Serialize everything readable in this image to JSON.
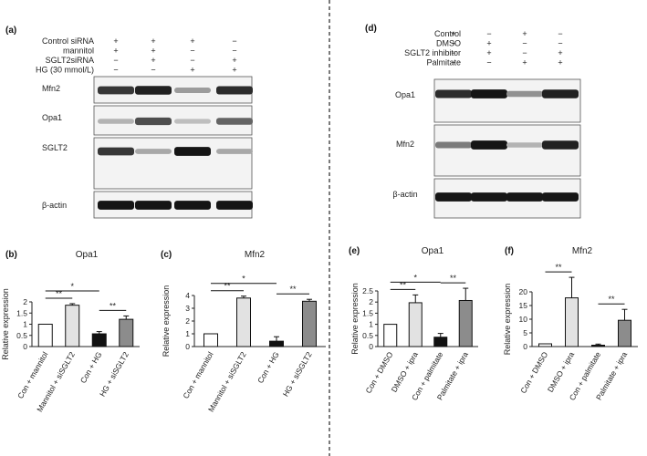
{
  "panel_labels": {
    "a": "(a)",
    "d": "(d)",
    "b": "(b)",
    "c": "(c)",
    "e": "(e)",
    "f": "(f)"
  },
  "panel_a": {
    "conditions": [
      {
        "label": "Control siRNA",
        "signs": [
          "+",
          "+",
          "+",
          "−"
        ]
      },
      {
        "label": "mannitol",
        "signs": [
          "+",
          "+",
          "−",
          "−"
        ]
      },
      {
        "label": "SGLT2siRNA",
        "signs": [
          "−",
          "+",
          "−",
          "+"
        ]
      },
      {
        "label": "HG (30 mmol/L)",
        "signs": [
          "−",
          "−",
          "+",
          "+"
        ]
      }
    ],
    "blots": [
      {
        "name": "Mfn2",
        "intensity": [
          0.8,
          0.9,
          0.35,
          0.85
        ]
      },
      {
        "name": "Opa1",
        "intensity": [
          0.25,
          0.7,
          0.2,
          0.6
        ]
      },
      {
        "name": "SGLT2",
        "intensity": [
          0.8,
          0.3,
          0.95,
          0.3
        ]
      },
      {
        "name": "β-actin",
        "intensity": [
          0.95,
          0.95,
          0.95,
          0.95
        ]
      }
    ]
  },
  "panel_d": {
    "conditions": [
      {
        "label": "Control",
        "signs": [
          "+",
          "−",
          "+",
          "−"
        ]
      },
      {
        "label": "DMSO",
        "signs": [
          "+",
          "+",
          "−",
          "−"
        ]
      },
      {
        "label": "SGLT2 inhibitor",
        "signs": [
          "−",
          "+",
          "−",
          "+"
        ]
      },
      {
        "label": "Palmitate",
        "signs": [
          "−",
          "−",
          "+",
          "+"
        ]
      }
    ],
    "blots": [
      {
        "name": "Opa1",
        "intensity": [
          0.85,
          0.95,
          0.4,
          0.9
        ]
      },
      {
        "name": "Mfn2",
        "intensity": [
          0.5,
          0.95,
          0.25,
          0.9
        ]
      },
      {
        "name": "β-actin",
        "intensity": [
          0.95,
          0.95,
          0.95,
          0.95
        ]
      }
    ]
  },
  "chart_data": [
    {
      "panel": "(b)",
      "type": "bar",
      "title": "Opa1",
      "ylabel": "Relative expression",
      "categories": [
        "Con + mannitol",
        "Mannitol + siSGLT2",
        "Con + HG",
        "HG + siSGLT2"
      ],
      "values": [
        1.0,
        1.85,
        0.57,
        1.22
      ],
      "errors": [
        0.0,
        0.07,
        0.1,
        0.15
      ],
      "fills": [
        "#ffffff",
        "#e2e2e2",
        "#111111",
        "#8c8c8c"
      ],
      "ylim": [
        0,
        2
      ],
      "yticks": [
        "0",
        "0.5",
        "1",
        "1.5",
        "2"
      ],
      "significance": [
        {
          "from": 0,
          "to": 1,
          "label": "**"
        },
        {
          "from": 0,
          "to": 2,
          "label": "*"
        },
        {
          "from": 2,
          "to": 3,
          "label": "**"
        }
      ]
    },
    {
      "panel": "(c)",
      "type": "bar",
      "title": "Mfn2",
      "ylabel": "Relative expression",
      "categories": [
        "Con + mannitol",
        "Mannitol + siSGLT2",
        "Con + HG",
        "HG + siSGLT2"
      ],
      "values": [
        1.0,
        3.8,
        0.42,
        3.55
      ],
      "errors": [
        0.0,
        0.15,
        0.35,
        0.15
      ],
      "fills": [
        "#ffffff",
        "#e2e2e2",
        "#111111",
        "#8c8c8c"
      ],
      "ylim": [
        0,
        4
      ],
      "yticks": [
        "0",
        "1",
        "2",
        "3",
        "4"
      ],
      "significance": [
        {
          "from": 0,
          "to": 1,
          "label": "**"
        },
        {
          "from": 0,
          "to": 2,
          "label": "*"
        },
        {
          "from": 2,
          "to": 3,
          "label": "**"
        }
      ]
    },
    {
      "panel": "(e)",
      "type": "bar",
      "title": "Opa1",
      "ylabel": "Relative expression",
      "categories": [
        "Con + DMSO",
        "DMSO + ipra",
        "Con + palmitate",
        "Palmitate + ipra"
      ],
      "values": [
        1.0,
        1.97,
        0.42,
        2.07
      ],
      "errors": [
        0.0,
        0.35,
        0.17,
        0.55
      ],
      "fills": [
        "#ffffff",
        "#e2e2e2",
        "#111111",
        "#8c8c8c"
      ],
      "ylim": [
        0,
        2.5
      ],
      "yticks": [
        "0",
        "0.5",
        "1",
        "1.5",
        "2",
        "2.5"
      ],
      "significance": [
        {
          "from": 0,
          "to": 1,
          "label": "**"
        },
        {
          "from": 0,
          "to": 2,
          "label": "*"
        },
        {
          "from": 2,
          "to": 3,
          "label": "**"
        }
      ]
    },
    {
      "panel": "(f)",
      "type": "bar",
      "title": "Mfn2",
      "ylabel": "Relative expression",
      "categories": [
        "Con + DMSO",
        "DMSO + ipra",
        "Con + palmitate",
        "Palmitate + ipra"
      ],
      "values": [
        1.0,
        17.8,
        0.5,
        9.6
      ],
      "errors": [
        0.0,
        7.5,
        0.4,
        4.0
      ],
      "fills": [
        "#ffffff",
        "#e2e2e2",
        "#111111",
        "#8c8c8c"
      ],
      "ylim": [
        0,
        20
      ],
      "yticks": [
        "0",
        "5",
        "10",
        "15",
        "20"
      ],
      "significance": [
        {
          "from": 0,
          "to": 1,
          "label": "**"
        },
        {
          "from": 2,
          "to": 3,
          "label": "**"
        }
      ]
    }
  ]
}
